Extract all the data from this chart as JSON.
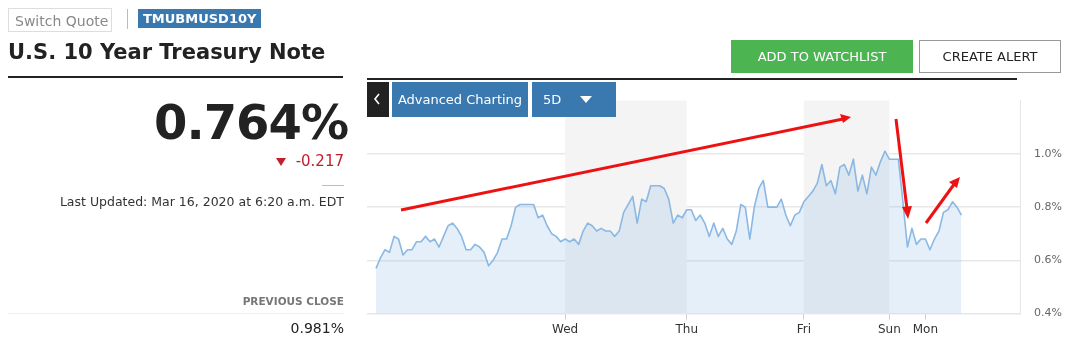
{
  "chart_data": {
    "type": "area",
    "title": "U.S. 10 Year Treasury Note",
    "annotations": [
      "Switch Quote",
      "TMUBMUSD10Y",
      "0.764%",
      "-0.217",
      "Last Updated: Mar 16, 2020 at 6:20 a.m. EDT",
      "PREVIOUS CLOSE",
      "0.981%",
      "ADD TO WATCHLIST",
      "CREATE ALERT",
      "Advanced Charting",
      "5D"
    ],
    "categories": [
      null,
      null,
      null,
      null,
      null,
      null,
      null,
      null,
      null,
      null,
      null,
      null,
      null,
      null,
      null,
      null,
      null,
      null,
      null,
      null,
      null,
      null,
      null,
      null,
      null,
      null,
      null,
      null,
      null,
      null,
      null,
      null,
      null,
      null,
      null,
      null,
      null,
      null,
      null,
      null,
      null,
      null,
      null,
      null,
      "Wed",
      null,
      null,
      null,
      null,
      null,
      null,
      null,
      null,
      null,
      null,
      null,
      null,
      null,
      null,
      null,
      null,
      null,
      null,
      null,
      null,
      null,
      null,
      null,
      null,
      null,
      null,
      "Thu",
      null,
      null,
      null,
      null,
      null,
      null,
      null,
      null,
      null,
      null,
      null,
      null,
      null,
      null,
      null,
      null,
      null,
      null,
      null,
      null,
      null,
      null,
      null,
      null,
      null,
      "Fri",
      null,
      null,
      null,
      null,
      null,
      null,
      null,
      null,
      null,
      null,
      null,
      null,
      null,
      null,
      null,
      null,
      null,
      null,
      "Sun",
      null,
      null,
      null,
      null,
      null,
      null,
      null,
      "Mon",
      null,
      null,
      null,
      null,
      null,
      null,
      null,
      null,
      null,
      null,
      null,
      null,
      null,
      null,
      null,
      null,
      null,
      null,
      null,
      null,
      null
    ],
    "series": [
      {
        "color": "#8ab8e2",
        "values": [
          null,
          null,
          0.57,
          0.61,
          0.64,
          0.63,
          0.69,
          0.68,
          0.62,
          0.64,
          0.64,
          0.67,
          0.67,
          0.69,
          0.67,
          0.68,
          0.65,
          0.69,
          0.73,
          0.74,
          0.72,
          0.69,
          0.64,
          0.64,
          0.66,
          0.65,
          0.63,
          0.58,
          0.6,
          0.63,
          0.68,
          0.68,
          0.73,
          0.8,
          0.81,
          0.81,
          0.81,
          0.81,
          0.76,
          0.77,
          0.73,
          0.7,
          0.69,
          0.67,
          0.68,
          0.67,
          0.68,
          0.66,
          0.71,
          0.74,
          0.73,
          0.71,
          0.72,
          0.71,
          0.71,
          0.69,
          0.71,
          0.78,
          0.81,
          0.84,
          0.74,
          0.83,
          0.82,
          0.88,
          0.88,
          0.88,
          0.87,
          0.83,
          0.74,
          0.77,
          0.76,
          0.79,
          0.79,
          0.75,
          0.77,
          0.74,
          0.69,
          0.74,
          0.69,
          0.72,
          0.68,
          0.66,
          0.71,
          0.81,
          0.8,
          0.68,
          0.8,
          0.87,
          0.9,
          0.8,
          0.8,
          0.8,
          0.83,
          0.77,
          0.73,
          0.77,
          0.78,
          0.82,
          0.84,
          0.86,
          0.89,
          0.96,
          0.88,
          0.9,
          0.85,
          0.95,
          0.96,
          0.92,
          0.98,
          0.86,
          0.92,
          0.85,
          0.95,
          0.92,
          0.97,
          1.01,
          0.98,
          0.98,
          0.98,
          0.82,
          0.65,
          0.72,
          0.66,
          0.68,
          0.68,
          0.64,
          0.68,
          0.71,
          0.78,
          0.79,
          0.82,
          0.8,
          0.77,
          null,
          null,
          null,
          null,
          null,
          null,
          null,
          null,
          null,
          null,
          null,
          null,
          null
        ]
      }
    ],
    "ylim": [
      0.4,
      1.2
    ],
    "yticks": [
      {
        "value": 0.4,
        "label": "0.4%"
      },
      {
        "value": 0.6,
        "label": "0.6%"
      },
      {
        "value": 0.8,
        "label": "0.8%"
      },
      {
        "value": 1.0,
        "label": "1.0%"
      }
    ],
    "bands": [
      {
        "axis": "x",
        "from": "Wed",
        "to": "Thu",
        "color": "#f4f4f4"
      },
      {
        "axis": "x",
        "from": "Fri",
        "to": "Sun",
        "color": "#f4f4f4"
      }
    ],
    "grid": "y",
    "legend": false,
    "marker": "none",
    "line_style": "solid"
  }
}
